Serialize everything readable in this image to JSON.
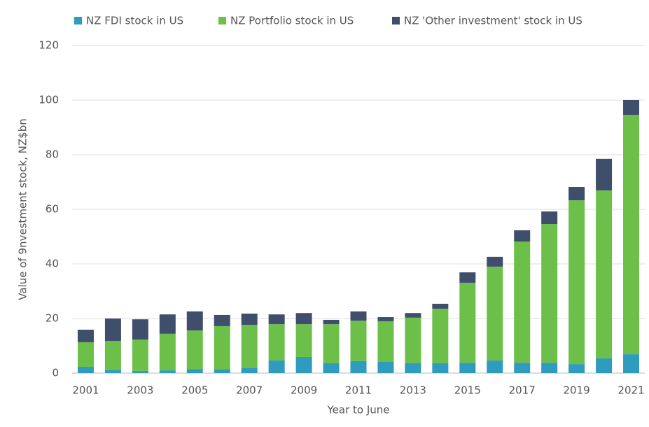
{
  "chart_data": {
    "type": "stacked_bar",
    "y_axis_label": "Value of 9nvestment stock, NZ$bn",
    "x_axis_label": "Year to June",
    "categories": [
      "2001",
      null,
      "2003",
      null,
      "2005",
      null,
      "2007",
      null,
      "2009",
      null,
      "2011",
      null,
      "2013",
      null,
      "2015",
      null,
      "2017",
      null,
      "2019",
      null,
      "2021"
    ],
    "series": [
      {
        "name": "NZ FDI stock in US",
        "color": "#2e9bbf",
        "values": [
          2.3,
          1.2,
          0.8,
          1.0,
          1.5,
          1.4,
          1.9,
          4.6,
          5.9,
          3.6,
          4.4,
          4.1,
          3.6,
          3.6,
          3.8,
          4.6,
          3.8,
          3.8,
          3.3,
          5.4,
          6.9
        ]
      },
      {
        "name": "NZ Portfolio stock in US",
        "color": "#6cc04a",
        "values": [
          9.0,
          10.6,
          11.5,
          13.4,
          14.1,
          15.8,
          15.8,
          13.3,
          12.0,
          14.3,
          14.8,
          14.9,
          16.7,
          20.0,
          29.3,
          34.4,
          44.4,
          50.8,
          60.0,
          61.5,
          87.7
        ]
      },
      {
        "name": "NZ 'Other investment' stock in US",
        "color": "#3f4e6b",
        "values": [
          4.6,
          8.2,
          7.4,
          7.1,
          7.0,
          4.1,
          4.1,
          3.6,
          4.1,
          1.6,
          3.4,
          1.5,
          1.7,
          1.8,
          3.8,
          3.6,
          4.1,
          4.6,
          4.9,
          11.6,
          5.4
        ]
      }
    ],
    "ylim": [
      0,
      120
    ],
    "yticks": [
      0,
      20,
      40,
      60,
      80,
      100,
      120
    ],
    "grid": true
  }
}
